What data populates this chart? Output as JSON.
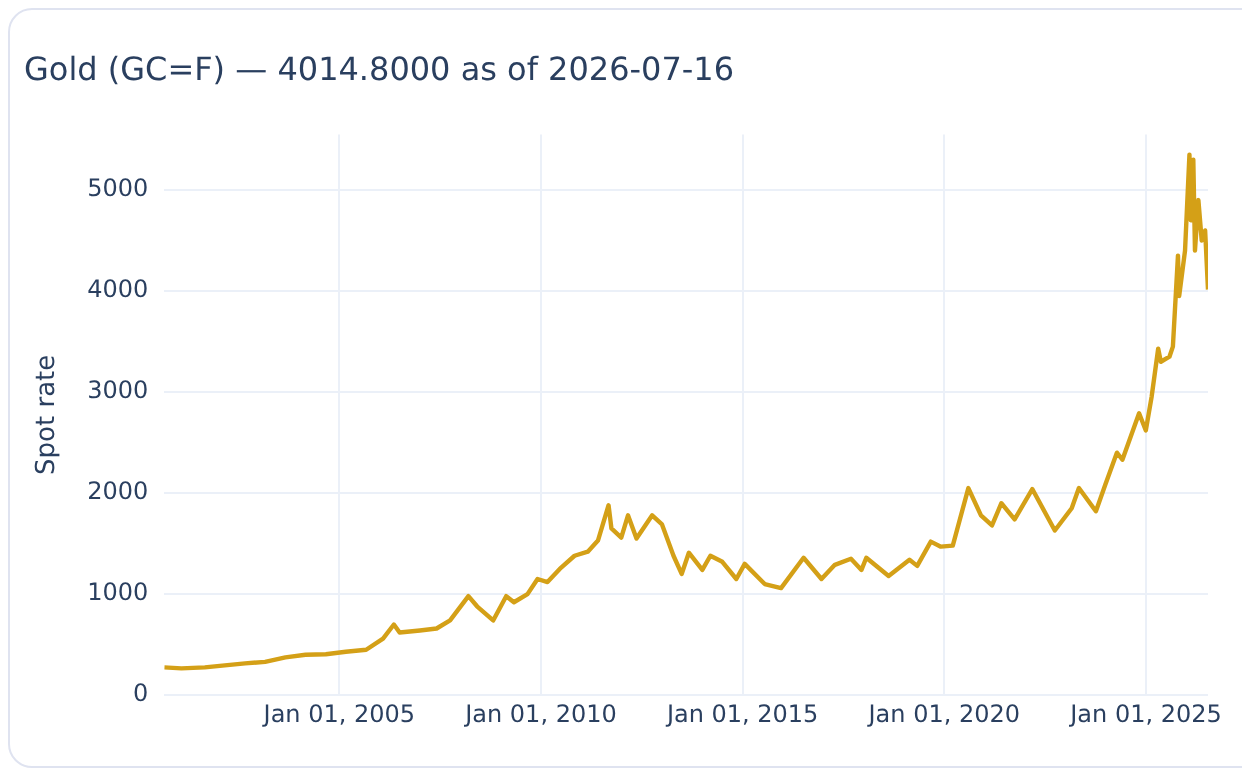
{
  "chart_data": {
    "type": "line",
    "title": "Gold (GC=F) — 4014.8000 as of 2026-07-16",
    "ylabel": "Spot rate",
    "x": [
      "2000-08-30",
      "2001-02-01",
      "2001-09-01",
      "2002-03-01",
      "2002-09-01",
      "2003-03-01",
      "2003-09-01",
      "2004-03-01",
      "2004-09-01",
      "2005-03-01",
      "2005-09-01",
      "2006-02-01",
      "2006-05-10",
      "2006-07-01",
      "2007-01-01",
      "2007-06-01",
      "2007-10-01",
      "2008-03-15",
      "2008-06-01",
      "2008-10-25",
      "2009-02-20",
      "2009-05-01",
      "2009-09-01",
      "2009-12-01",
      "2010-03-01",
      "2010-06-20",
      "2010-11-01",
      "2011-03-01",
      "2011-06-01",
      "2011-09-05",
      "2011-10-01",
      "2011-12-29",
      "2012-02-28",
      "2012-05-15",
      "2012-10-04",
      "2013-01-01",
      "2013-04-15",
      "2013-06-28",
      "2013-09-01",
      "2014-01-01",
      "2014-03-15",
      "2014-07-01",
      "2014-11-05",
      "2015-01-20",
      "2015-07-20",
      "2015-12-15",
      "2016-07-06",
      "2016-12-15",
      "2017-04-15",
      "2017-09-08",
      "2017-12-12",
      "2018-01-25",
      "2018-08-15",
      "2019-02-20",
      "2019-05-01",
      "2019-09-01",
      "2019-12-01",
      "2020-03-18",
      "2020-08-06",
      "2020-11-28",
      "2021-03-08",
      "2021-06-01",
      "2021-09-29",
      "2022-03-08",
      "2022-09-28",
      "2023-02-28",
      "2023-05-04",
      "2023-10-05",
      "2023-12-28",
      "2024-04-12",
      "2024-06-01",
      "2024-10-30",
      "2024-12-30",
      "2025-02-20",
      "2025-04-21",
      "2025-05-15",
      "2025-08-01",
      "2025-09-01",
      "2025-10-17",
      "2025-10-28",
      "2025-12-20",
      "2026-01-29",
      "2026-02-10",
      "2026-03-05",
      "2026-03-20",
      "2026-04-20",
      "2026-05-20",
      "2026-06-20",
      "2026-07-16"
    ],
    "series": [
      {
        "color": "#d4a017",
        "values": [
          275,
          265,
          275,
          295,
          315,
          330,
          375,
          400,
          405,
          430,
          450,
          560,
          700,
          620,
          640,
          660,
          740,
          980,
          880,
          740,
          980,
          920,
          1000,
          1150,
          1120,
          1250,
          1380,
          1420,
          1530,
          1880,
          1650,
          1560,
          1780,
          1550,
          1780,
          1690,
          1380,
          1200,
          1410,
          1240,
          1380,
          1320,
          1150,
          1300,
          1100,
          1060,
          1360,
          1150,
          1290,
          1350,
          1240,
          1360,
          1180,
          1340,
          1280,
          1520,
          1470,
          1480,
          2050,
          1780,
          1680,
          1900,
          1740,
          2040,
          1630,
          1850,
          2050,
          1820,
          2080,
          2400,
          2330,
          2790,
          2620,
          2950,
          3430,
          3300,
          3350,
          3450,
          4350,
          3950,
          4400,
          5350,
          4700,
          5300,
          4400,
          4900,
          4500,
          4600,
          4014.8
        ]
      }
    ],
    "xlim": [
      "2000-08-30",
      "2026-07-16"
    ],
    "xticks": [
      {
        "value": "2005-01-01",
        "label": "Jan 01, 2005"
      },
      {
        "value": "2010-01-01",
        "label": "Jan 01, 2010"
      },
      {
        "value": "2015-01-01",
        "label": "Jan 01, 2015"
      },
      {
        "value": "2020-01-01",
        "label": "Jan 01, 2020"
      },
      {
        "value": "2025-01-01",
        "label": "Jan 01, 2025"
      }
    ],
    "ylim": [
      0,
      5550
    ],
    "yticks": [
      0,
      1000,
      2000,
      3000,
      4000,
      5000
    ],
    "grid": true,
    "legend": false
  }
}
